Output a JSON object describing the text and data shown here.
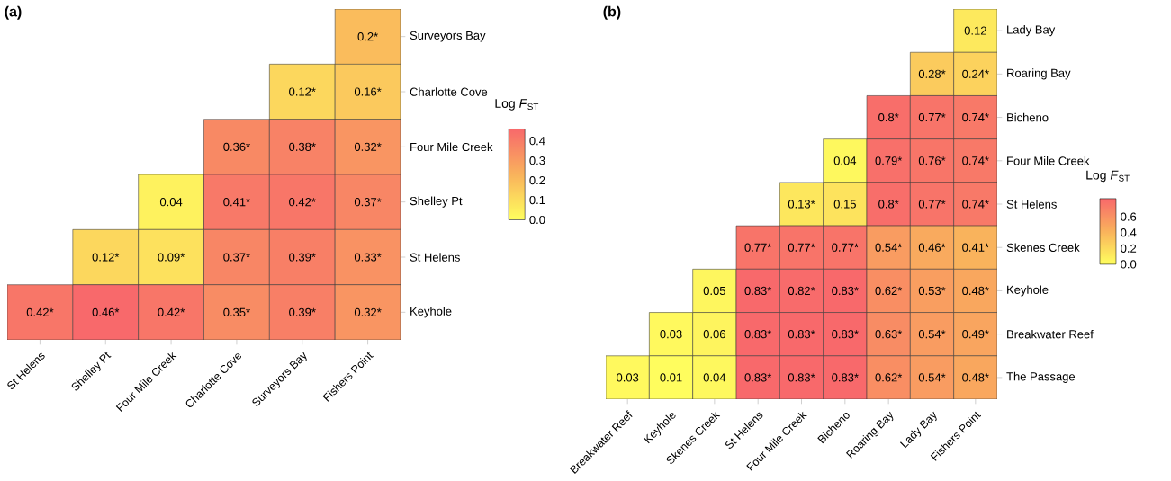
{
  "chart_data": [
    {
      "type": "heatmap",
      "title": "(a)",
      "clabel": "Log *F*$_{ST}$",
      "categories": [
        "St Helens",
        "Shelley Pt",
        "Four Mile Creek",
        "Charlotte Cove",
        "Surveyors Bay",
        "Fishers Point"
      ],
      "y_categories": [
        "Surveyors Bay",
        "Charlotte Cove",
        "Four Mile Creek",
        "Shelley Pt",
        "St Helens",
        "Keyhole"
      ],
      "cells": [
        [
          null,
          null,
          null,
          null,
          null,
          0.2
        ],
        [
          null,
          null,
          null,
          null,
          0.12,
          0.16
        ],
        [
          null,
          null,
          null,
          0.36,
          0.38,
          0.32
        ],
        [
          null,
          null,
          0.04,
          0.41,
          0.42,
          0.37
        ],
        [
          null,
          0.12,
          0.09,
          0.37,
          0.39,
          0.33
        ],
        [
          0.42,
          0.46,
          0.42,
          0.35,
          0.39,
          0.32
        ]
      ],
      "cell_labels": [
        [
          null,
          null,
          null,
          null,
          null,
          "0.2*"
        ],
        [
          null,
          null,
          null,
          null,
          "0.12*",
          "0.16*"
        ],
        [
          null,
          null,
          null,
          "0.36*",
          "0.38*",
          "0.32*"
        ],
        [
          null,
          null,
          "0.04",
          "0.41*",
          "0.42*",
          "0.37*"
        ],
        [
          null,
          "0.12*",
          "0.09*",
          "0.37*",
          "0.39*",
          "0.33*"
        ],
        [
          "0.42*",
          "0.46*",
          "0.42*",
          "0.35*",
          "0.39*",
          "0.32*"
        ]
      ],
      "clim": [
        0,
        0.46
      ],
      "cticks": [
        {
          "value": 0,
          "label": "0.0"
        },
        0.1,
        0.2,
        0.3,
        0.4
      ]
    },
    {
      "type": "heatmap",
      "title": "(b)",
      "clabel": "Log *F*$_{ST}$",
      "categories": [
        "Breakwater Reef",
        "Keyhole",
        "Skenes Creek",
        "St Helens",
        "Four Mile Creek",
        "Bicheno",
        "Roaring Bay",
        "Lady Bay",
        "Fishers Point"
      ],
      "y_categories": [
        "Lady Bay",
        "Roaring Bay",
        "Bicheno",
        "Four Mile Creek",
        "St Helens",
        "Skenes Creek",
        "Keyhole",
        "Breakwater Reef",
        "The Passage"
      ],
      "cells": [
        [
          null,
          null,
          null,
          null,
          null,
          null,
          null,
          null,
          0.12
        ],
        [
          null,
          null,
          null,
          null,
          null,
          null,
          null,
          0.28,
          0.24
        ],
        [
          null,
          null,
          null,
          null,
          null,
          null,
          0.8,
          0.77,
          0.74
        ],
        [
          null,
          null,
          null,
          null,
          null,
          0.04,
          0.79,
          0.76,
          0.74
        ],
        [
          null,
          null,
          null,
          null,
          0.13,
          0.15,
          0.8,
          0.77,
          0.74
        ],
        [
          null,
          null,
          null,
          0.77,
          0.77,
          0.77,
          0.54,
          0.46,
          0.41
        ],
        [
          null,
          null,
          0.05,
          0.83,
          0.82,
          0.83,
          0.62,
          0.53,
          0.48
        ],
        [
          null,
          0.03,
          0.06,
          0.83,
          0.83,
          0.83,
          0.63,
          0.54,
          0.49
        ],
        [
          0.03,
          0.01,
          0.04,
          0.83,
          0.83,
          0.83,
          0.62,
          0.54,
          0.48
        ]
      ],
      "cell_labels": [
        [
          null,
          null,
          null,
          null,
          null,
          null,
          null,
          null,
          "0.12"
        ],
        [
          null,
          null,
          null,
          null,
          null,
          null,
          null,
          "0.28*",
          "0.24*"
        ],
        [
          null,
          null,
          null,
          null,
          null,
          null,
          "0.8*",
          "0.77*",
          "0.74*"
        ],
        [
          null,
          null,
          null,
          null,
          null,
          "0.04",
          "0.79*",
          "0.76*",
          "0.74*"
        ],
        [
          null,
          null,
          null,
          null,
          "0.13*",
          "0.15",
          "0.8*",
          "0.77*",
          "0.74*"
        ],
        [
          null,
          null,
          null,
          "0.77*",
          "0.77*",
          "0.77*",
          "0.54*",
          "0.46*",
          "0.41*"
        ],
        [
          null,
          null,
          "0.05",
          "0.83*",
          "0.82*",
          "0.83*",
          "0.62*",
          "0.53*",
          "0.48*"
        ],
        [
          null,
          "0.03",
          "0.06",
          "0.83*",
          "0.83*",
          "0.83*",
          "0.63*",
          "0.54*",
          "0.49*"
        ],
        [
          "0.03",
          "0.01",
          "0.04",
          "0.83*",
          "0.83*",
          "0.83*",
          "0.62*",
          "0.54*",
          "0.48*"
        ]
      ],
      "clim": [
        0,
        0.83
      ],
      "cticks": [
        {
          "value": 0,
          "label": "0.0"
        },
        0.2,
        0.4,
        0.6
      ]
    }
  ]
}
